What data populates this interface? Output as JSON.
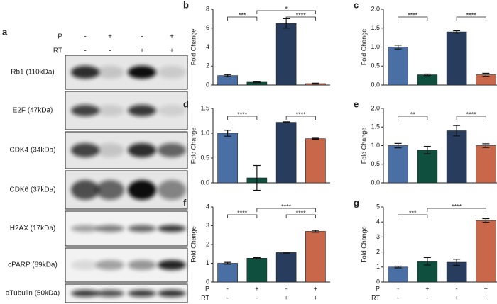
{
  "blot": {
    "panel_label": "a",
    "conditions": [
      {
        "label": "P",
        "values": [
          "-",
          "+",
          "-",
          "+"
        ]
      },
      {
        "label": "RT",
        "values": [
          "-",
          "-",
          "+",
          "+"
        ]
      }
    ],
    "proteins": [
      "Rb1 (110kDa)",
      "E2F (47kDa)",
      "CDK4 (34kDa)",
      "CDK6 (37kDa)",
      "H2AX (17kDa)",
      "cPARP (89kDa)",
      "aTubulin (50kDa)"
    ]
  },
  "chart_data": [
    {
      "type": "bar",
      "panel_label": "b",
      "y_label": "Fold Change",
      "categories": [
        null,
        null,
        null,
        null
      ],
      "values": [
        1.0,
        0.3,
        6.5,
        0.15
      ],
      "errors": [
        0.1,
        0.05,
        0.5,
        0.05
      ],
      "colors": [
        "#4a6fa5",
        "#0f4f3e",
        "#283d5e",
        "#c8674a"
      ],
      "ylim": [
        0,
        8
      ],
      "yticks": [
        0,
        2,
        4,
        6,
        8
      ],
      "annotations": [
        {
          "from": 0,
          "to": 1,
          "label": "***"
        },
        {
          "from": 1,
          "to": 3,
          "label": "*"
        },
        {
          "from": 2,
          "to": 3,
          "label": "****"
        }
      ]
    },
    {
      "type": "bar",
      "panel_label": "c",
      "y_label": "Fold Change",
      "categories": [
        null,
        null,
        null,
        null
      ],
      "values": [
        1.0,
        0.27,
        1.4,
        0.27
      ],
      "errors": [
        0.05,
        0.02,
        0.03,
        0.04
      ],
      "colors": [
        "#4a6fa5",
        "#0f4f3e",
        "#283d5e",
        "#c8674a"
      ],
      "ylim": [
        0,
        2
      ],
      "yticks": [
        {
          "value": 0,
          "label": "0.0"
        },
        0.5,
        {
          "value": 1,
          "label": "1.0"
        },
        1.5,
        {
          "value": 2,
          "label": "2.0"
        }
      ],
      "annotations": [
        {
          "from": 0,
          "to": 1,
          "label": "****"
        },
        {
          "from": 2,
          "to": 3,
          "label": "****"
        }
      ]
    },
    {
      "type": "bar",
      "panel_label": "d",
      "y_label": "Fold Change",
      "categories": [
        null,
        null,
        null,
        null
      ],
      "values": [
        1.0,
        0.1,
        1.22,
        0.89
      ],
      "errors": [
        0.06,
        0.25,
        0.01,
        0.01
      ],
      "colors": [
        "#4a6fa5",
        "#0f4f3e",
        "#283d5e",
        "#c8674a"
      ],
      "ylim": [
        0,
        1.5
      ],
      "yticks": [
        {
          "value": 0,
          "label": "0.0"
        },
        0.5,
        {
          "value": 1,
          "label": "1.0"
        },
        1.5
      ],
      "annotations": [
        {
          "from": 0,
          "to": 1,
          "label": "****"
        },
        {
          "from": 2,
          "to": 3,
          "label": "****"
        }
      ]
    },
    {
      "type": "bar",
      "panel_label": "e",
      "y_label": "Fold Change",
      "categories": [
        null,
        null,
        null,
        null
      ],
      "values": [
        1.0,
        0.88,
        1.4,
        1.0
      ],
      "errors": [
        0.06,
        0.1,
        0.14,
        0.05
      ],
      "colors": [
        "#4a6fa5",
        "#0f4f3e",
        "#283d5e",
        "#c8674a"
      ],
      "ylim": [
        0,
        2
      ],
      "yticks": [
        {
          "value": 0,
          "label": "0.0"
        },
        0.5,
        {
          "value": 1,
          "label": "1.0"
        },
        1.5,
        {
          "value": 2,
          "label": "2.0"
        }
      ],
      "annotations": [
        {
          "from": 0,
          "to": 1,
          "label": "**"
        },
        {
          "from": 2,
          "to": 3,
          "label": "****"
        }
      ]
    },
    {
      "type": "bar",
      "panel_label": "f",
      "y_label": "Fold Change",
      "categories": [
        null,
        null,
        null,
        null
      ],
      "values": [
        1.0,
        1.27,
        1.57,
        2.7
      ],
      "errors": [
        0.05,
        0.03,
        0.03,
        0.05
      ],
      "colors": [
        "#4a6fa5",
        "#0f4f3e",
        "#283d5e",
        "#c8674a"
      ],
      "ylim": [
        0,
        4
      ],
      "yticks": [
        0,
        1,
        2,
        3,
        4
      ],
      "annotations": [
        {
          "from": 0,
          "to": 1,
          "label": "****"
        },
        {
          "from": 1,
          "to": 3,
          "label": "****"
        },
        {
          "from": 2,
          "to": 3,
          "label": "****"
        }
      ],
      "x_rows": [
        {
          "label": "P",
          "values": [
            "-",
            "+",
            "-",
            "+"
          ]
        },
        {
          "label": "RT",
          "values": [
            "-",
            "-",
            "+",
            "+"
          ]
        }
      ]
    },
    {
      "type": "bar",
      "panel_label": "g",
      "y_label": "Fold Change",
      "categories": [
        null,
        null,
        null,
        null
      ],
      "values": [
        1.0,
        1.38,
        1.32,
        4.1
      ],
      "errors": [
        0.06,
        0.25,
        0.2,
        0.12
      ],
      "colors": [
        "#4a6fa5",
        "#0f4f3e",
        "#283d5e",
        "#c8674a"
      ],
      "ylim": [
        0,
        5
      ],
      "yticks": [
        0,
        1,
        2,
        3,
        4,
        5
      ],
      "annotations": [
        {
          "from": 0,
          "to": 1,
          "label": "***"
        },
        {
          "from": 1,
          "to": 3,
          "label": "****"
        }
      ],
      "x_rows": [
        {
          "label": "P",
          "values": [
            "-",
            "+",
            "-",
            "+"
          ]
        },
        {
          "label": "RT",
          "values": [
            "-",
            "-",
            "+",
            "+"
          ]
        }
      ]
    }
  ]
}
